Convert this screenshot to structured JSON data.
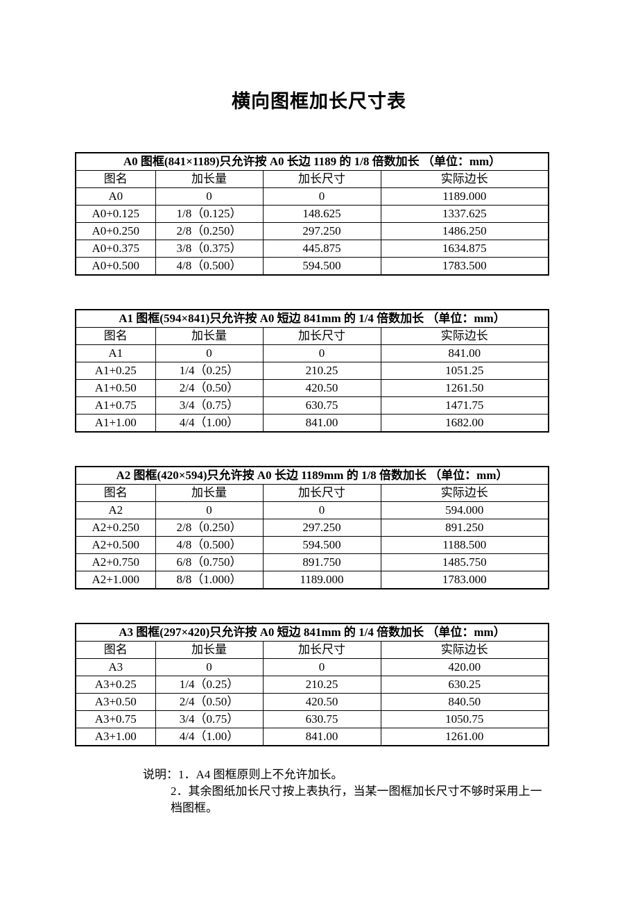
{
  "page": {
    "title": "横向图框加长尺寸表"
  },
  "tables": [
    {
      "id": "A0",
      "caption": "A0 图框(841×1189)只允许按 A0 长边 1189 的 1/8 倍数加长  （单位：mm）",
      "columns": [
        "图名",
        "加长量",
        "加长尺寸",
        "实际边长"
      ],
      "rows": [
        [
          "A0",
          "0",
          "0",
          "1189.000"
        ],
        [
          "A0+0.125",
          "1/8（0.125）",
          "148.625",
          "1337.625"
        ],
        [
          "A0+0.250",
          "2/8（0.250）",
          "297.250",
          "1486.250"
        ],
        [
          "A0+0.375",
          "3/8（0.375）",
          "445.875",
          "1634.875"
        ],
        [
          "A0+0.500",
          "4/8（0.500）",
          "594.500",
          "1783.500"
        ]
      ]
    },
    {
      "id": "A1",
      "caption": "A1 图框(594×841)只允许按 A0 短边 841mm 的 1/4 倍数加长  （单位：mm）",
      "columns": [
        "图名",
        "加长量",
        "加长尺寸",
        "实际边长"
      ],
      "rows": [
        [
          "A1",
          "0",
          "0",
          "841.00"
        ],
        [
          "A1+0.25",
          "1/4（0.25）",
          "210.25",
          "1051.25"
        ],
        [
          "A1+0.50",
          "2/4（0.50）",
          "420.50",
          "1261.50"
        ],
        [
          "A1+0.75",
          "3/4（0.75）",
          "630.75",
          "1471.75"
        ],
        [
          "A1+1.00",
          "4/4（1.00）",
          "841.00",
          "1682.00"
        ]
      ]
    },
    {
      "id": "A2",
      "caption": "A2 图框(420×594)只允许按 A0 长边 1189mm 的 1/8 倍数加长  （单位：mm）",
      "columns": [
        "图名",
        "加长量",
        "加长尺寸",
        "实际边长"
      ],
      "rows": [
        [
          "A2",
          "0",
          "0",
          "594.000"
        ],
        [
          "A2+0.250",
          "2/8（0.250）",
          "297.250",
          "891.250"
        ],
        [
          "A2+0.500",
          "4/8（0.500）",
          "594.500",
          "1188.500"
        ],
        [
          "A2+0.750",
          "6/8（0.750）",
          "891.750",
          "1485.750"
        ],
        [
          "A2+1.000",
          "8/8（1.000）",
          "1189.000",
          "1783.000"
        ]
      ]
    },
    {
      "id": "A3",
      "caption": "A3 图框(297×420)只允许按 A0 短边 841mm 的 1/4 倍数加长  （单位：mm）",
      "columns": [
        "图名",
        "加长量",
        "加长尺寸",
        "实际边长"
      ],
      "rows": [
        [
          "A3",
          "0",
          "0",
          "420.00"
        ],
        [
          "A3+0.25",
          "1/4（0.25）",
          "210.25",
          "630.25"
        ],
        [
          "A3+0.50",
          "2/4（0.50）",
          "420.50",
          "840.50"
        ],
        [
          "A3+0.75",
          "3/4（0.75）",
          "630.75",
          "1050.75"
        ],
        [
          "A3+1.00",
          "4/4（1.00）",
          "841.00",
          "1261.00"
        ]
      ]
    }
  ],
  "notes": {
    "line1": "说明：1．A4 图框原则上不允许加长。",
    "line2": "2．其余图纸加长尺寸按上表执行，当某一图框加长尺寸不够时采用上一档图框。"
  }
}
